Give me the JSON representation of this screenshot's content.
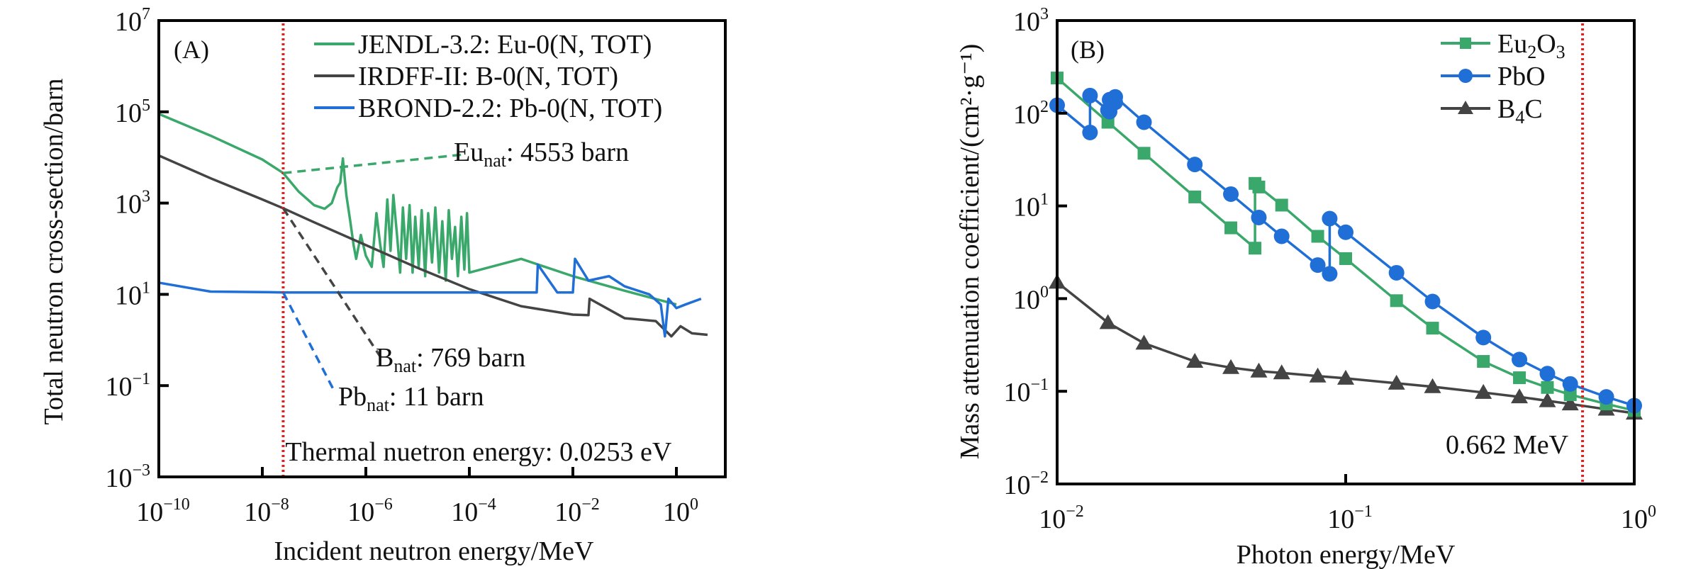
{
  "chart_data": [
    {
      "id": "A",
      "type": "line",
      "panel_label": "(A)",
      "xlabel": "Incident neutron energy/MeV",
      "ylabel": "Total neutron cross-section/barn",
      "xscale": "log",
      "yscale": "log",
      "xlim": [
        1e-10,
        9
      ],
      "ylim": [
        0.001,
        10000000.0
      ],
      "x_ticks": [
        {
          "base": "10",
          "exp": "−10",
          "v": 1e-10
        },
        {
          "base": "10",
          "exp": "−8",
          "v": 1e-08
        },
        {
          "base": "10",
          "exp": "−6",
          "v": 1e-06
        },
        {
          "base": "10",
          "exp": "−4",
          "v": 0.0001
        },
        {
          "base": "10",
          "exp": "−2",
          "v": 0.01
        },
        {
          "base": "10",
          "exp": "0",
          "v": 1
        }
      ],
      "y_ticks": [
        {
          "base": "10",
          "exp": "−3",
          "v": 0.001
        },
        {
          "base": "10",
          "exp": "−1",
          "v": 0.1
        },
        {
          "base": "10",
          "exp": "1",
          "v": 10
        },
        {
          "base": "10",
          "exp": "3",
          "v": 1000.0
        },
        {
          "base": "10",
          "exp": "5",
          "v": 100000.0
        },
        {
          "base": "10",
          "exp": "7",
          "v": 10000000.0
        }
      ],
      "grid": false,
      "legend_position": "top-right",
      "series": [
        {
          "name": "JENDL-3.2: Eu-0(N, TOT)",
          "color": "#3aa86a",
          "x": [
            1e-10,
            1e-09,
            1e-08,
            2.53e-08,
            5e-08,
            1e-07,
            1.6e-07,
            2.2e-07,
            2.8e-07,
            3.2e-07,
            3.6e-07,
            4.2e-07,
            5e-07,
            5.8e-07,
            6.5e-07,
            8e-07,
            1e-06,
            1.3e-06,
            1.6e-06,
            1.9e-06,
            2.2e-06,
            2.6e-06,
            3e-06,
            3.4e-06,
            4e-06,
            4.6e-06,
            5.2e-06,
            6e-06,
            7e-06,
            8e-06,
            9e-06,
            1.05e-05,
            1.2e-05,
            1.4e-05,
            1.6e-05,
            1.9e-05,
            2.2e-05,
            2.6e-05,
            3e-05,
            3.5e-05,
            4e-05,
            4.6e-05,
            5.3e-05,
            6e-05,
            7e-05,
            8e-05,
            9e-05,
            0.0001,
            0.001,
            0.01,
            0.1,
            1,
            9
          ],
          "y": [
            90000.0,
            30000.0,
            9000.0,
            4553,
            1800,
            900,
            750,
            1000,
            2200,
            2800,
            9500,
            1500,
            400,
            120,
            60,
            200,
            70,
            40,
            600,
            120,
            40,
            1200,
            90,
            1500,
            200,
            30,
            800,
            60,
            900,
            30,
            500,
            40,
            700,
            25,
            600,
            50,
            800,
            30,
            400,
            20,
            700,
            60,
            300,
            25,
            500,
            35,
            600,
            30,
            60,
            25,
            12,
            6,
            5
          ]
        },
        {
          "name": "IRDFF-II: B-0(N, TOT)",
          "color": "#444444",
          "x": [
            1e-10,
            1e-09,
            1e-08,
            2.53e-08,
            1e-07,
            1e-06,
            1e-05,
            0.0001,
            0.001,
            0.01,
            0.02,
            0.021,
            0.1,
            0.4,
            0.8,
            1.2,
            2,
            4,
            9
          ],
          "y": [
            11000.0,
            3500,
            1200,
            769,
            380,
            120,
            38,
            13,
            5.5,
            3.6,
            3.5,
            8,
            3.0,
            2.6,
            1.2,
            2.0,
            1.4,
            1.3,
            1.2
          ]
        },
        {
          "name": "BROND-2.2: Pb-0(N, TOT)",
          "color": "#1f6fd6",
          "x": [
            1e-10,
            1e-09,
            1e-08,
            2.53e-08,
            1e-06,
            0.0001,
            0.001,
            0.002,
            0.0021,
            0.005,
            0.01,
            0.011,
            0.02,
            0.05,
            0.1,
            0.3,
            0.5,
            0.6,
            0.7,
            1,
            1.5,
            3,
            9
          ],
          "y": [
            18,
            11.5,
            11.2,
            11,
            11,
            11,
            11,
            11,
            45,
            11,
            11,
            60,
            20,
            25,
            15,
            10,
            6,
            1.2,
            8,
            5,
            6,
            8,
            5
          ]
        }
      ],
      "annotations": [
        {
          "text_main": "Eu",
          "text_sub": "nat",
          "text_tail": ": 4553 barn",
          "at_x": 2.53e-08,
          "at_y": 4553,
          "color": "#3aa86a",
          "style": "dashed"
        },
        {
          "text_main": "B",
          "text_sub": "nat",
          "text_tail": ": 769 barn",
          "at_x": 2.53e-08,
          "at_y": 769,
          "color": "#444444",
          "style": "dashed"
        },
        {
          "text_main": "Pb",
          "text_sub": "nat",
          "text_tail": ": 11 barn",
          "at_x": 2.53e-08,
          "at_y": 11,
          "color": "#1f6fd6",
          "style": "dashed"
        },
        {
          "text_main": "Thermal nuetron energy: 0.0253 eV",
          "text_sub": "",
          "text_tail": "",
          "at_x": 2.53e-08,
          "color": "#e02020",
          "style": "dotted-vertical"
        }
      ]
    },
    {
      "id": "B",
      "type": "line",
      "panel_label": "(B)",
      "xlabel": "Photon energy/MeV",
      "ylabel": "Mass attenuation coefficient/(cm²·g⁻¹)",
      "xscale": "log",
      "yscale": "log",
      "xlim": [
        0.01,
        1
      ],
      "ylim": [
        0.01,
        1000
      ],
      "x_ticks": [
        {
          "base": "10",
          "exp": "−2",
          "v": 0.01
        },
        {
          "base": "10",
          "exp": "−1",
          "v": 0.1
        },
        {
          "base": "10",
          "exp": "0",
          "v": 1
        }
      ],
      "y_ticks": [
        {
          "base": "10",
          "exp": "−2",
          "v": 0.01
        },
        {
          "base": "10",
          "exp": "−1",
          "v": 0.1
        },
        {
          "base": "10",
          "exp": "0",
          "v": 1
        },
        {
          "base": "10",
          "exp": "1",
          "v": 10
        },
        {
          "base": "10",
          "exp": "2",
          "v": 100
        },
        {
          "base": "10",
          "exp": "3",
          "v": 1000
        }
      ],
      "grid": false,
      "legend_position": "top-right",
      "series": [
        {
          "name_main": "Eu",
          "name_sub1": "2",
          "name_mid": "O",
          "name_sub2": "3",
          "marker": "square",
          "color": "#3aa86a",
          "x": [
            0.01,
            0.015,
            0.02,
            0.03,
            0.04,
            0.0485,
            0.0485,
            0.05,
            0.06,
            0.08,
            0.1,
            0.15,
            0.2,
            0.3,
            0.4,
            0.5,
            0.6,
            0.8,
            1.0
          ],
          "y": [
            240,
            80,
            37,
            12.5,
            5.8,
            3.5,
            17.5,
            16,
            10.2,
            4.7,
            2.7,
            0.95,
            0.48,
            0.21,
            0.14,
            0.11,
            0.092,
            0.073,
            0.062
          ]
        },
        {
          "name_main": "PbO",
          "name_sub1": "",
          "name_mid": "",
          "name_sub2": "",
          "marker": "circle",
          "color": "#1f6fd6",
          "x": [
            0.01,
            0.013,
            0.013,
            0.015,
            0.0152,
            0.0152,
            0.0159,
            0.0159,
            0.02,
            0.03,
            0.04,
            0.05,
            0.06,
            0.08,
            0.088,
            0.088,
            0.1,
            0.15,
            0.2,
            0.3,
            0.4,
            0.5,
            0.6,
            0.8,
            1.0
          ],
          "y": [
            122,
            62,
            155,
            108,
            104,
            140,
            131,
            150,
            80,
            28,
            13.4,
            7.5,
            4.7,
            2.3,
            1.85,
            7.3,
            5.2,
            1.9,
            0.93,
            0.38,
            0.22,
            0.155,
            0.12,
            0.087,
            0.07
          ]
        },
        {
          "name_main": "B",
          "name_sub1": "4",
          "name_mid": "C",
          "name_sub2": "",
          "marker": "triangle",
          "color": "#444444",
          "x": [
            0.01,
            0.015,
            0.02,
            0.03,
            0.04,
            0.05,
            0.06,
            0.08,
            0.1,
            0.15,
            0.2,
            0.3,
            0.4,
            0.5,
            0.6,
            0.8,
            1.0
          ],
          "y": [
            1.5,
            0.55,
            0.33,
            0.21,
            0.18,
            0.165,
            0.158,
            0.146,
            0.138,
            0.122,
            0.112,
            0.097,
            0.087,
            0.079,
            0.073,
            0.064,
            0.058
          ]
        }
      ],
      "annotations": [
        {
          "text_main": "0.662 MeV",
          "at_x": 0.662,
          "color": "#e02020",
          "style": "dotted-vertical"
        }
      ]
    }
  ]
}
